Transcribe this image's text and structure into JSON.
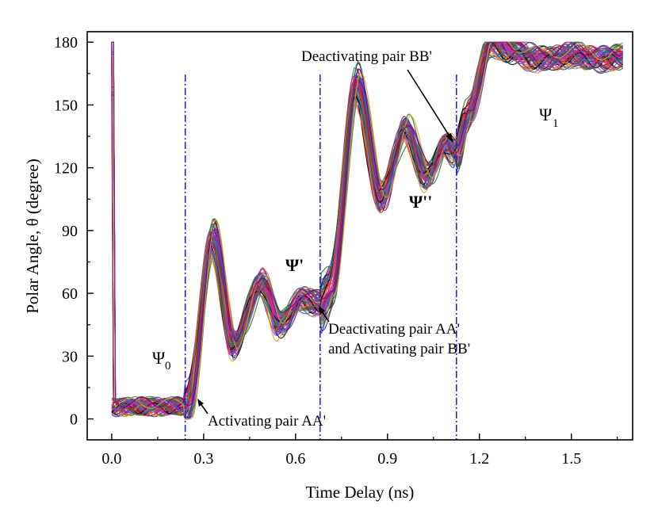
{
  "chart_data": {
    "type": "line",
    "title": "",
    "xlabel": "Time Delay (ns)",
    "ylabel": "Polar Angle, θ (degree)",
    "xlim": [
      -0.08,
      1.7
    ],
    "ylim": [
      -10,
      185
    ],
    "xticks": [
      0.0,
      0.3,
      0.6,
      0.9,
      1.2,
      1.5
    ],
    "xtick_labels": [
      "0.0",
      "0.3",
      "0.6",
      "0.9",
      "1.2",
      "1.5"
    ],
    "yticks": [
      0,
      30,
      60,
      90,
      120,
      150,
      180
    ],
    "ytick_labels": [
      "0",
      "30",
      "60",
      "90",
      "120",
      "150",
      "180"
    ],
    "vlines": [
      0.24,
      0.68,
      1.125
    ],
    "vline_color": "#2222dd",
    "series_count": 60,
    "series_colors": [
      "#d4145a",
      "#1f3fd1",
      "#1a7a1a",
      "#8a2be2",
      "#ff6600",
      "#000000",
      "#cc33cc",
      "#008b8b",
      "#b22222",
      "#6b4226",
      "#ff1493",
      "#2e8b57",
      "#4169e1",
      "#daa520",
      "#800080"
    ],
    "envelope": [
      {
        "x": 0.0,
        "y": 6
      },
      {
        "x": 0.24,
        "y": 6
      },
      {
        "x": 0.25,
        "y": 8
      },
      {
        "x": 0.33,
        "y": 86
      },
      {
        "x": 0.4,
        "y": 36
      },
      {
        "x": 0.49,
        "y": 66
      },
      {
        "x": 0.55,
        "y": 45
      },
      {
        "x": 0.62,
        "y": 58
      },
      {
        "x": 0.68,
        "y": 55
      },
      {
        "x": 0.715,
        "y": 63
      },
      {
        "x": 0.8,
        "y": 160
      },
      {
        "x": 0.88,
        "y": 106
      },
      {
        "x": 0.96,
        "y": 139
      },
      {
        "x": 1.03,
        "y": 116
      },
      {
        "x": 1.09,
        "y": 132
      },
      {
        "x": 1.125,
        "y": 127
      },
      {
        "x": 1.16,
        "y": 145
      },
      {
        "x": 1.24,
        "y": 180
      },
      {
        "x": 1.32,
        "y": 175
      },
      {
        "x": 1.4,
        "y": 172
      },
      {
        "x": 1.5,
        "y": 174
      },
      {
        "x": 1.6,
        "y": 172
      },
      {
        "x": 1.67,
        "y": 173
      }
    ],
    "annotations": [
      {
        "text": "Deactivating pair BB'",
        "x": 1.125,
        "y": 130
      },
      {
        "text": "Deactivating pair AA'",
        "x": 0.68,
        "y": 56
      },
      {
        "text": "and Activating pair BB'",
        "x": 0.68,
        "y": 56
      },
      {
        "text": "Activating pair AA'",
        "x": 0.245,
        "y": 8
      }
    ],
    "state_labels": [
      {
        "symbol": "Ψ",
        "subscript": "0",
        "x": 0.06,
        "y": 30
      },
      {
        "symbol": "Ψ'",
        "subscript": "",
        "x": 0.57,
        "y": 73
      },
      {
        "symbol": "Ψ''",
        "subscript": "",
        "x": 0.98,
        "y": 102
      },
      {
        "symbol": "Ψ",
        "subscript": "1",
        "x": 1.39,
        "y": 143
      }
    ]
  }
}
